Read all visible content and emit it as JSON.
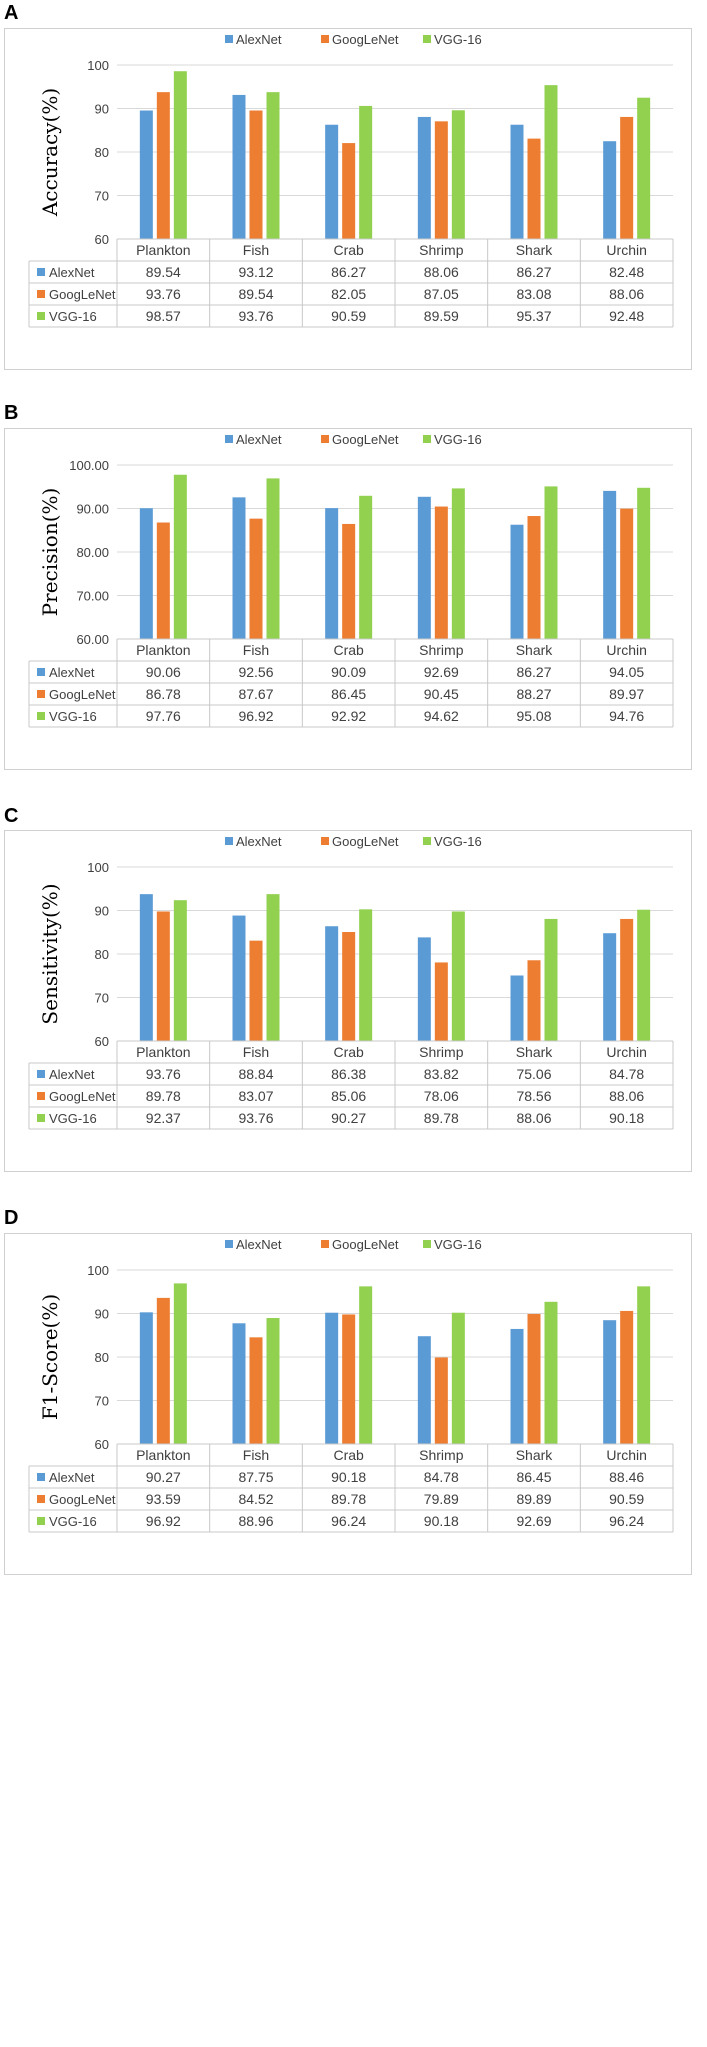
{
  "colors": {
    "AlexNet": "#5b9bd5",
    "GoogLeNet": "#ed7d31",
    "VGG-16": "#92d050",
    "grid": "#d9d9d9",
    "table_border": "#c8c8c8"
  },
  "chart_data": [
    {
      "panel": "A",
      "type": "bar",
      "ylabel": "Accuracy(%)",
      "ylim": [
        60,
        100
      ],
      "yticks": [
        "60",
        "70",
        "80",
        "90",
        "100"
      ],
      "categories": [
        "Plankton",
        "Fish",
        "Crab",
        "Shrimp",
        "Shark",
        "Urchin"
      ],
      "series": [
        {
          "name": "AlexNet",
          "values": [
            89.54,
            93.12,
            86.27,
            88.06,
            86.27,
            82.48
          ],
          "labels": [
            "89.54",
            "93.12",
            "86.27",
            "88.06",
            "86.27",
            "82.48"
          ]
        },
        {
          "name": "GoogLeNet",
          "values": [
            93.76,
            89.54,
            82.05,
            87.05,
            83.08,
            88.06
          ],
          "labels": [
            "93.76",
            "89.54",
            "82.05",
            "87.05",
            "83.08",
            "88.06"
          ]
        },
        {
          "name": "VGG-16",
          "values": [
            98.57,
            93.76,
            90.59,
            89.59,
            95.37,
            92.48
          ],
          "labels": [
            "98.57",
            "93.76",
            "90.59",
            "89.59",
            "95.37",
            "92.48"
          ]
        }
      ]
    },
    {
      "panel": "B",
      "type": "bar",
      "ylabel": "Precision(%)",
      "ylim": [
        60,
        100
      ],
      "yticks": [
        "60.00",
        "70.00",
        "80.00",
        "90.00",
        "100.00"
      ],
      "categories": [
        "Plankton",
        "Fish",
        "Crab",
        "Shrimp",
        "Shark",
        "Urchin"
      ],
      "series": [
        {
          "name": "AlexNet",
          "values": [
            90.06,
            92.56,
            90.09,
            92.69,
            86.27,
            94.05
          ],
          "labels": [
            "90.06",
            "92.56",
            "90.09",
            "92.69",
            "86.27",
            "94.05"
          ]
        },
        {
          "name": "GoogLeNet",
          "values": [
            86.78,
            87.67,
            86.45,
            90.45,
            88.27,
            89.97
          ],
          "labels": [
            "86.78",
            "87.67",
            "86.45",
            "90.45",
            "88.27",
            "89.97"
          ]
        },
        {
          "name": "VGG-16",
          "values": [
            97.76,
            96.92,
            92.92,
            94.62,
            95.08,
            94.76
          ],
          "labels": [
            "97.76",
            "96.92",
            "92.92",
            "94.62",
            "95.08",
            "94.76"
          ]
        }
      ]
    },
    {
      "panel": "C",
      "type": "bar",
      "ylabel": "Sensitivity(%)",
      "ylim": [
        60,
        100
      ],
      "yticks": [
        "60",
        "70",
        "80",
        "90",
        "100"
      ],
      "categories": [
        "Plankton",
        "Fish",
        "Crab",
        "Shrimp",
        "Shark",
        "Urchin"
      ],
      "series": [
        {
          "name": "AlexNet",
          "values": [
            93.76,
            88.84,
            86.38,
            83.82,
            75.06,
            84.78
          ],
          "labels": [
            "93.76",
            "88.84",
            "86.38",
            "83.82",
            "75.06",
            "84.78"
          ]
        },
        {
          "name": "GoogLeNet",
          "values": [
            89.78,
            83.07,
            85.06,
            78.06,
            78.56,
            88.06
          ],
          "labels": [
            "89.78",
            "83.07",
            "85.06",
            "78.06",
            "78.56",
            "88.06"
          ]
        },
        {
          "name": "VGG-16",
          "values": [
            92.37,
            93.76,
            90.27,
            89.78,
            88.06,
            90.18
          ],
          "labels": [
            "92.37",
            "93.76",
            "90.27",
            "89.78",
            "88.06",
            "90.18"
          ]
        }
      ]
    },
    {
      "panel": "D",
      "type": "bar",
      "ylabel": "F1-Score(%)",
      "ylim": [
        60,
        100
      ],
      "yticks": [
        "60",
        "70",
        "80",
        "90",
        "100"
      ],
      "categories": [
        "Plankton",
        "Fish",
        "Crab",
        "Shrimp",
        "Shark",
        "Urchin"
      ],
      "series": [
        {
          "name": "AlexNet",
          "values": [
            90.27,
            87.75,
            90.18,
            84.78,
            86.45,
            88.46
          ],
          "labels": [
            "90.27",
            "87.75",
            "90.18",
            "84.78",
            "86.45",
            "88.46"
          ]
        },
        {
          "name": "GoogLeNet",
          "values": [
            93.59,
            84.52,
            89.78,
            79.89,
            89.89,
            90.59
          ],
          "labels": [
            "93.59",
            "84.52",
            "89.78",
            "79.89",
            "89.89",
            "90.59"
          ]
        },
        {
          "name": "VGG-16",
          "values": [
            96.92,
            88.96,
            96.24,
            90.18,
            92.69,
            96.24
          ],
          "labels": [
            "96.92",
            "88.96",
            "96.24",
            "90.18",
            "92.69",
            "96.24"
          ]
        }
      ]
    }
  ]
}
